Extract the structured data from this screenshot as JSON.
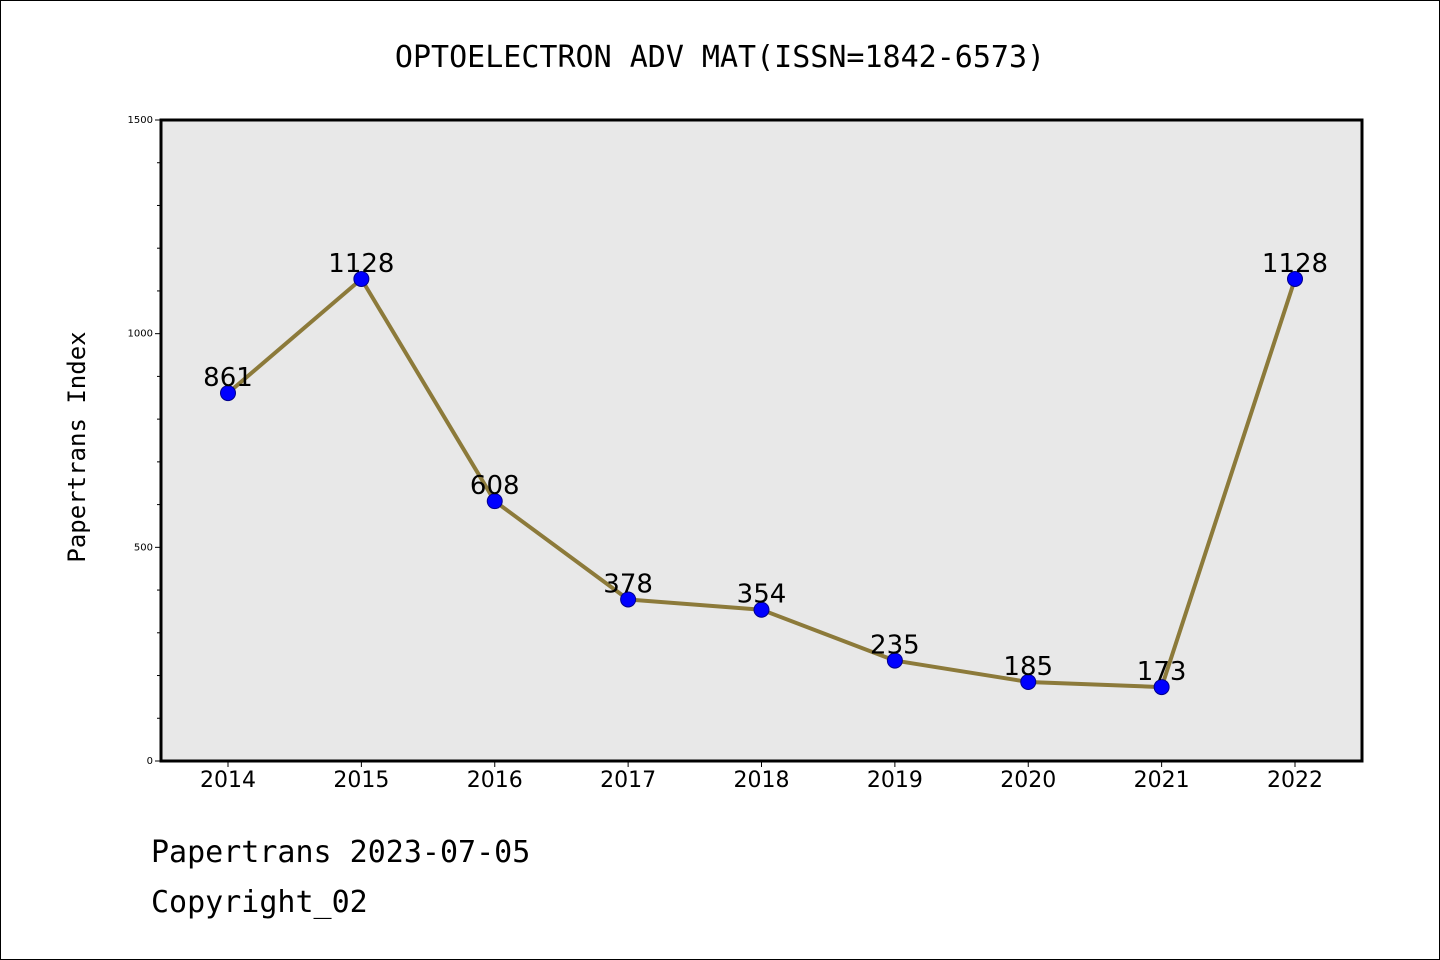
{
  "chart_data": {
    "type": "line",
    "title": "OPTOELECTRON ADV MAT(ISSN=1842-6573)",
    "xlabel": "",
    "ylabel": "Papertrans Index",
    "categories": [
      "2014",
      "2015",
      "2016",
      "2017",
      "2018",
      "2019",
      "2020",
      "2021",
      "2022"
    ],
    "values": [
      861,
      1128,
      608,
      378,
      354,
      235,
      185,
      173,
      1128
    ],
    "data_labels": [
      "861",
      "1128",
      "608",
      "378",
      "354",
      "235",
      "185",
      "173",
      "1128"
    ],
    "ylim": [
      0,
      1500
    ],
    "y_ticks": [
      0,
      500,
      1000,
      1500
    ],
    "y_tick_labels": [
      "0",
      "500",
      "1000",
      "1500"
    ],
    "y_minor_step": 100,
    "grid": false,
    "colors": {
      "line": "#8c7a3a",
      "marker_fill": "#0000ff",
      "marker_edge": "#00008b",
      "plot_background": "#e8e8e8"
    }
  },
  "footer": {
    "line1": "Papertrans 2023-07-05",
    "line2": "Copyright_02"
  }
}
